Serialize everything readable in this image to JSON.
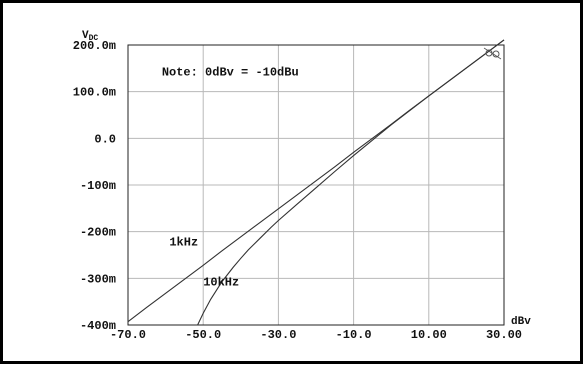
{
  "chart_data": {
    "type": "line",
    "title": "",
    "xlabel": "dBv",
    "ylabel": "VDC",
    "x_ticks": [
      "-70.0",
      "-50.0",
      "-30.0",
      "-10.0",
      "10.00",
      "30.00"
    ],
    "y_ticks": [
      "-400m",
      "-300m",
      "-200m",
      "-100m",
      "0.0",
      "100.0m",
      "200.0m"
    ],
    "xlim": [
      -70,
      30
    ],
    "ylim": [
      -0.4,
      0.2
    ],
    "grid": true,
    "annotations": [
      {
        "text": "Note: 0dBv = -10dBu",
        "x": -61,
        "y": 0.135
      },
      {
        "text": "1kHz",
        "x": -59,
        "y": -0.23
      },
      {
        "text": "10kHz",
        "x": -50,
        "y": -0.315
      }
    ],
    "series": [
      {
        "name": "1kHz",
        "x": [
          -70,
          -65,
          -60,
          -55,
          -50,
          -45,
          -40,
          -35,
          -30,
          -25,
          -20,
          -15,
          -10,
          -5,
          0,
          5,
          10,
          15,
          20,
          25,
          30
        ],
        "y": [
          -0.393,
          -0.362,
          -0.332,
          -0.302,
          -0.272,
          -0.241,
          -0.211,
          -0.181,
          -0.151,
          -0.121,
          -0.091,
          -0.061,
          -0.03,
          0.0,
          0.03,
          0.061,
          0.091,
          0.121,
          0.151,
          0.181,
          0.211
        ]
      },
      {
        "name": "10kHz",
        "x": [
          -51.5,
          -50,
          -48,
          -45,
          -42,
          -40,
          -38,
          -35,
          -32,
          -30,
          -25,
          -20,
          -15,
          -10,
          -5,
          0,
          10,
          20,
          30
        ],
        "y": [
          -0.4,
          -0.375,
          -0.345,
          -0.307,
          -0.276,
          -0.257,
          -0.239,
          -0.215,
          -0.191,
          -0.176,
          -0.141,
          -0.106,
          -0.071,
          -0.037,
          -0.004,
          0.029,
          0.091,
          0.151,
          0.211
        ]
      }
    ],
    "colors": {
      "grid": "#b8b8b8",
      "line": "#333333",
      "frame": "#000000"
    }
  }
}
